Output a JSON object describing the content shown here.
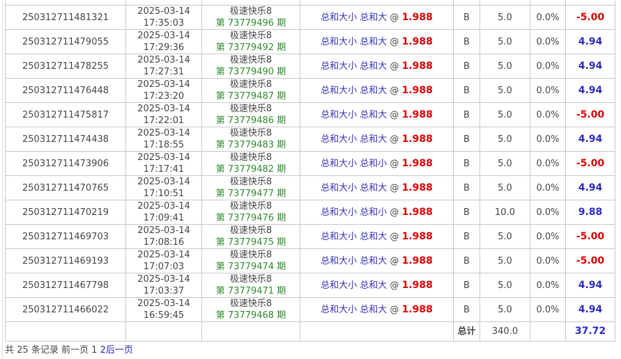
{
  "rows": [
    {
      "order": "250312711481321",
      "date": "2025-03-14",
      "time": "17:35:03",
      "game": "极速快乐8",
      "issue_prefix": "第",
      "issue": "73779496",
      "issue_suffix": "期",
      "play": "总和大小 总和大",
      "at": "@",
      "odds": "1.988",
      "side": "B",
      "amount": "5.0",
      "rebate": "0.0%",
      "result": "-5.00"
    },
    {
      "order": "250312711479055",
      "date": "2025-03-14",
      "time": "17:29:36",
      "game": "极速快乐8",
      "issue_prefix": "第",
      "issue": "73779492",
      "issue_suffix": "期",
      "play": "总和大小 总和大",
      "at": "@",
      "odds": "1.988",
      "side": "B",
      "amount": "5.0",
      "rebate": "0.0%",
      "result": "4.94"
    },
    {
      "order": "250312711478255",
      "date": "2025-03-14",
      "time": "17:27:31",
      "game": "极速快乐8",
      "issue_prefix": "第",
      "issue": "73779490",
      "issue_suffix": "期",
      "play": "总和大小 总和大",
      "at": "@",
      "odds": "1.988",
      "side": "B",
      "amount": "5.0",
      "rebate": "0.0%",
      "result": "4.94"
    },
    {
      "order": "250312711476448",
      "date": "2025-03-14",
      "time": "17:23:20",
      "game": "极速快乐8",
      "issue_prefix": "第",
      "issue": "73779487",
      "issue_suffix": "期",
      "play": "总和大小 总和大",
      "at": "@",
      "odds": "1.988",
      "side": "B",
      "amount": "5.0",
      "rebate": "0.0%",
      "result": "4.94"
    },
    {
      "order": "250312711475817",
      "date": "2025-03-14",
      "time": "17:22:01",
      "game": "极速快乐8",
      "issue_prefix": "第",
      "issue": "73779486",
      "issue_suffix": "期",
      "play": "总和大小 总和大",
      "at": "@",
      "odds": "1.988",
      "side": "B",
      "amount": "5.0",
      "rebate": "0.0%",
      "result": "-5.00"
    },
    {
      "order": "250312711474438",
      "date": "2025-03-14",
      "time": "17:18:55",
      "game": "极速快乐8",
      "issue_prefix": "第",
      "issue": "73779483",
      "issue_suffix": "期",
      "play": "总和大小 总和大",
      "at": "@",
      "odds": "1.988",
      "side": "B",
      "amount": "5.0",
      "rebate": "0.0%",
      "result": "4.94"
    },
    {
      "order": "250312711473906",
      "date": "2025-03-14",
      "time": "17:17:41",
      "game": "极速快乐8",
      "issue_prefix": "第",
      "issue": "73779482",
      "issue_suffix": "期",
      "play": "总和大小 总和小",
      "at": "@",
      "odds": "1.988",
      "side": "B",
      "amount": "5.0",
      "rebate": "0.0%",
      "result": "-5.00"
    },
    {
      "order": "250312711470765",
      "date": "2025-03-14",
      "time": "17:10:51",
      "game": "极速快乐8",
      "issue_prefix": "第",
      "issue": "73779477",
      "issue_suffix": "期",
      "play": "总和大小 总和大",
      "at": "@",
      "odds": "1.988",
      "side": "B",
      "amount": "5.0",
      "rebate": "0.0%",
      "result": "4.94"
    },
    {
      "order": "250312711470219",
      "date": "2025-03-14",
      "time": "17:09:41",
      "game": "极速快乐8",
      "issue_prefix": "第",
      "issue": "73779476",
      "issue_suffix": "期",
      "play": "总和大小 总和小",
      "at": "@",
      "odds": "1.988",
      "side": "B",
      "amount": "10.0",
      "rebate": "0.0%",
      "result": "9.88"
    },
    {
      "order": "250312711469703",
      "date": "2025-03-14",
      "time": "17:08:16",
      "game": "极速快乐8",
      "issue_prefix": "第",
      "issue": "73779475",
      "issue_suffix": "期",
      "play": "总和大小 总和大",
      "at": "@",
      "odds": "1.988",
      "side": "B",
      "amount": "5.0",
      "rebate": "0.0%",
      "result": "-5.00"
    },
    {
      "order": "250312711469193",
      "date": "2025-03-14",
      "time": "17:07:03",
      "game": "极速快乐8",
      "issue_prefix": "第",
      "issue": "73779474",
      "issue_suffix": "期",
      "play": "总和大小 总和大",
      "at": "@",
      "odds": "1.988",
      "side": "B",
      "amount": "5.0",
      "rebate": "0.0%",
      "result": "-5.00"
    },
    {
      "order": "250312711467798",
      "date": "2025-03-14",
      "time": "17:03:37",
      "game": "极速快乐8",
      "issue_prefix": "第",
      "issue": "73779471",
      "issue_suffix": "期",
      "play": "总和大小 总和大",
      "at": "@",
      "odds": "1.988",
      "side": "B",
      "amount": "5.0",
      "rebate": "0.0%",
      "result": "4.94"
    },
    {
      "order": "250312711466022",
      "date": "2025-03-14",
      "time": "16:59:45",
      "game": "极速快乐8",
      "issue_prefix": "第",
      "issue": "73779468",
      "issue_suffix": "期",
      "play": "总和大小 总和大",
      "at": "@",
      "odds": "1.988",
      "side": "B",
      "amount": "5.0",
      "rebate": "0.0%",
      "result": "4.94"
    }
  ],
  "total": {
    "label": "总计",
    "amount": "340.0",
    "result": "37.72"
  },
  "pager": {
    "summary_prefix": "共",
    "count": "25",
    "summary_suffix": "条记录",
    "prev": "前一页",
    "page1": "1",
    "page2": "2",
    "next": "后一页"
  },
  "colors": {
    "loss": "#e00000",
    "win": "#2a2acc",
    "issue": "#2e8b2e",
    "play": "#3333bb",
    "odds": "#e00000"
  }
}
